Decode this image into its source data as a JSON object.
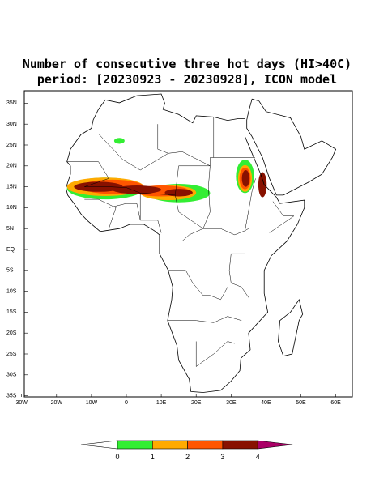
{
  "title": "Number of consecutive three hot days (HI>40C)",
  "subtitle": "period: [20230923 - 20230928], ICON model",
  "map": {
    "lat_labels": [
      "35N",
      "30N",
      "25N",
      "20N",
      "15N",
      "10N",
      "5N",
      "EQ",
      "5S",
      "10S",
      "15S",
      "20S",
      "25S",
      "30S",
      "35S"
    ],
    "lon_labels": [
      "30W",
      "20W",
      "10W",
      "0",
      "10E",
      "20E",
      "30E",
      "40E",
      "50E",
      "60E"
    ]
  },
  "colorbar": {
    "ticks": [
      0,
      1,
      2,
      3,
      4
    ],
    "colors": [
      "#ffffff",
      "#33ee33",
      "#ffaa00",
      "#ff5500",
      "#881100",
      "#aa0066"
    ]
  }
}
